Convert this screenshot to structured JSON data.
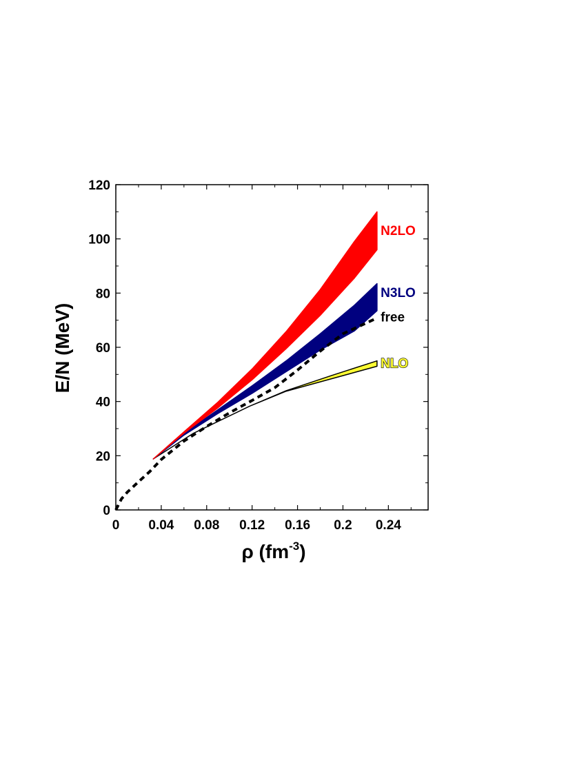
{
  "chart_data": {
    "type": "line",
    "xlabel": {
      "main": "ρ (fm",
      "sup": "-3",
      "close": ")"
    },
    "ylabel": "E/N (MeV)",
    "xlim": [
      0,
      0.275
    ],
    "ylim": [
      0,
      120
    ],
    "x_ticks": [
      0,
      0.04,
      0.08,
      0.12,
      0.16,
      0.2,
      0.24
    ],
    "x_tick_labels": [
      "0",
      "0.04",
      "0.08",
      "0.12",
      "0.16",
      "0.2",
      "0.24"
    ],
    "y_ticks": [
      0,
      20,
      40,
      60,
      80,
      100,
      120
    ],
    "y_tick_labels": [
      "0",
      "20",
      "40",
      "60",
      "80",
      "100",
      "120"
    ],
    "grid": false,
    "series": [
      {
        "name": "free",
        "style": "dashed",
        "color": "#000000",
        "x": [
          0,
          0.005,
          0.01,
          0.02,
          0.03,
          0.04,
          0.06,
          0.08,
          0.1,
          0.12,
          0.14,
          0.16,
          0.18,
          0.2,
          0.23
        ],
        "y": [
          0,
          4.1,
          6.5,
          10.4,
          14.2,
          18.6,
          25.4,
          30.8,
          35.8,
          40.4,
          45.1,
          51.6,
          58.6,
          65.0,
          70.8
        ]
      },
      {
        "name": "NLO",
        "type": "band",
        "fill": "#ffff33",
        "stroke": "#000000",
        "x": [
          0.033,
          0.068,
          0.118,
          0.15,
          0.19,
          0.23
        ],
        "lower": [
          18.8,
          28.2,
          38.3,
          43.8,
          48.4,
          53.0
        ],
        "upper": [
          18.8,
          28.2,
          38.3,
          44.0,
          49.6,
          55.0
        ]
      },
      {
        "name": "N3LO",
        "type": "band",
        "fill": "#00007f",
        "stroke": "#00007f",
        "x": [
          0.033,
          0.06,
          0.09,
          0.12,
          0.15,
          0.18,
          0.21,
          0.23
        ],
        "lower": [
          18.8,
          27.6,
          35.6,
          43.0,
          51.0,
          59.0,
          66.0,
          73.5
        ],
        "upper": [
          18.8,
          28.3,
          37.0,
          45.8,
          55.0,
          65.0,
          75.5,
          83.5
        ]
      },
      {
        "name": "N2LO",
        "type": "band",
        "fill": "#ff0000",
        "stroke": "#ff0000",
        "x": [
          0.033,
          0.06,
          0.09,
          0.12,
          0.15,
          0.18,
          0.21,
          0.23
        ],
        "lower": [
          18.8,
          28.3,
          37.7,
          48.0,
          59.5,
          71.8,
          85.5,
          96.0
        ],
        "upper": [
          18.8,
          28.8,
          39.8,
          52.0,
          65.8,
          81.3,
          99.0,
          110.0
        ]
      }
    ],
    "labels": [
      {
        "text": "N2LO",
        "color": "#ff0000",
        "x": 0.232,
        "y": 101.5,
        "outline": "none"
      },
      {
        "text": "N3LO",
        "color": "#00007f",
        "x": 0.232,
        "y": 78.5,
        "outline": "none"
      },
      {
        "text": "free",
        "color": "#000000",
        "x": 0.232,
        "y": 69.5,
        "outline": "none"
      },
      {
        "text": "NLO",
        "color": "#ffff33",
        "x": 0.232,
        "y": 52.5,
        "outline": "#000000"
      }
    ]
  }
}
